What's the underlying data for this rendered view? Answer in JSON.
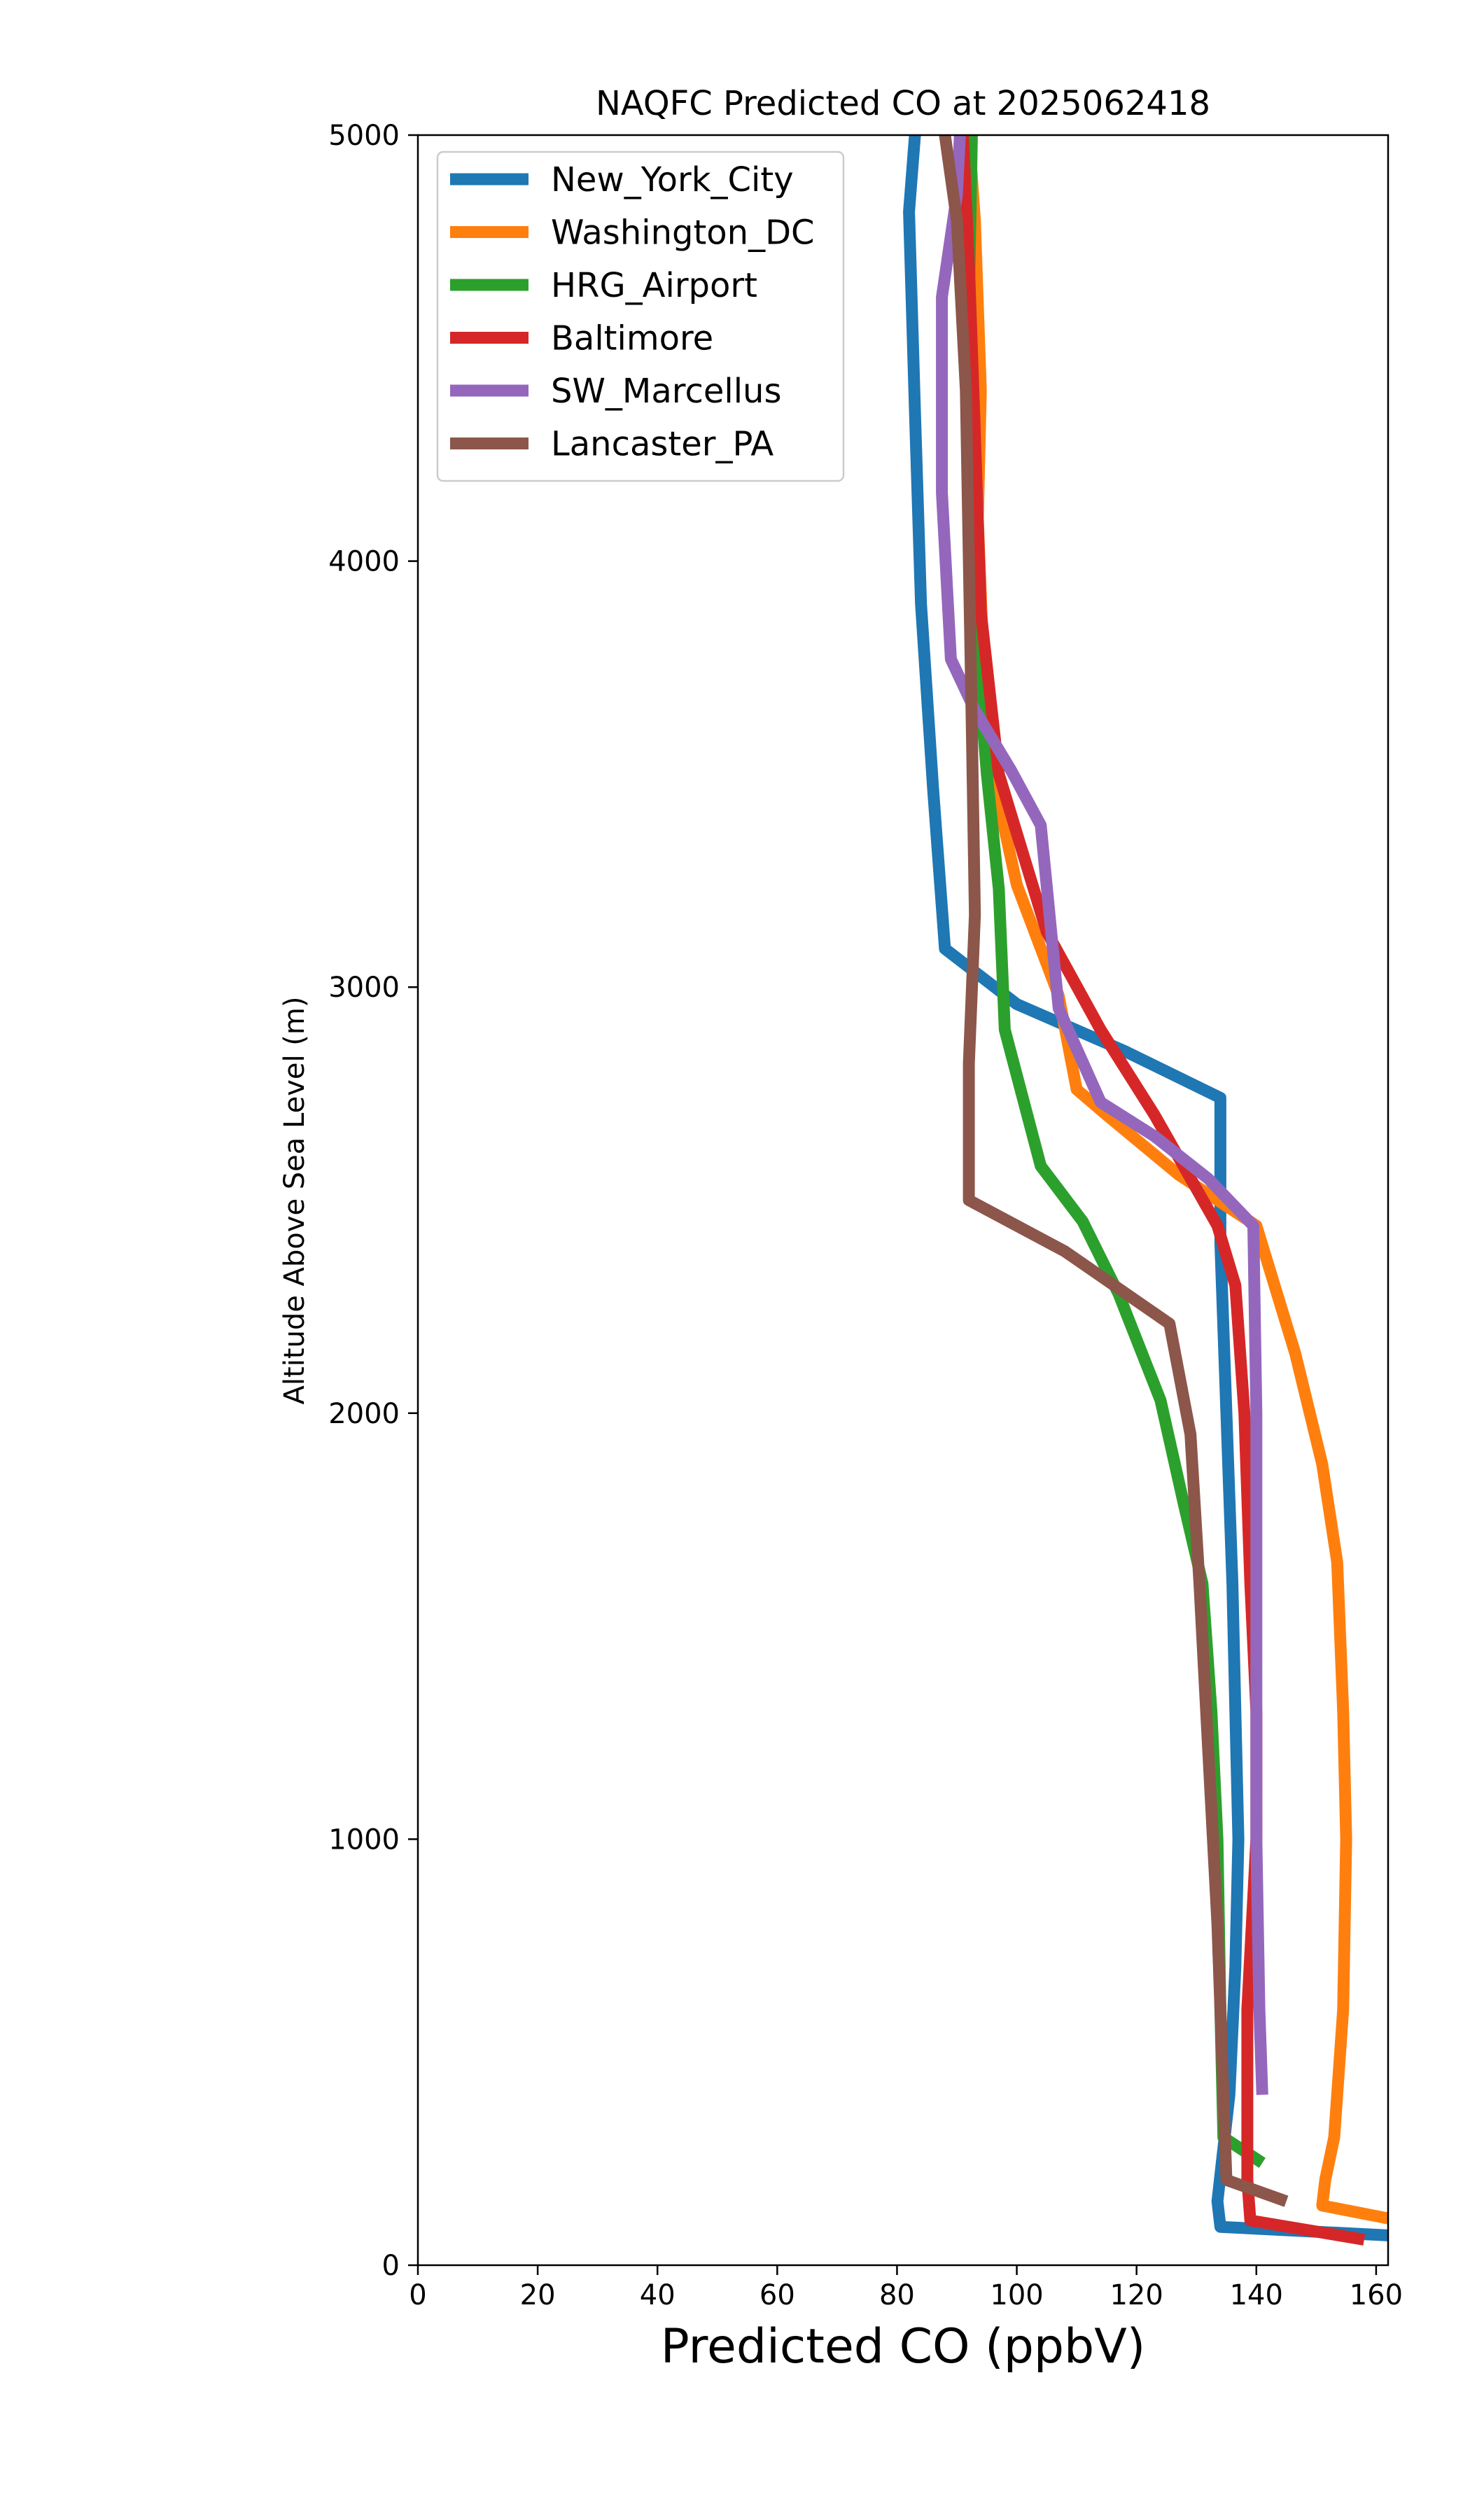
{
  "chart_data": {
    "type": "line",
    "title": "NAQFC Predicted CO at 2025062418",
    "xlabel": "Predicted CO (ppbV)",
    "ylabel": "Altitude Above Sea Level (m)",
    "xlim": [
      0,
      162
    ],
    "ylim": [
      0,
      5000
    ],
    "xticks": [
      0,
      20,
      40,
      60,
      80,
      100,
      120,
      140,
      160
    ],
    "yticks": [
      0,
      1000,
      2000,
      3000,
      4000,
      5000
    ],
    "grid": false,
    "legend_position": "top-left",
    "series": [
      {
        "name": "New_York_City",
        "color": "#1f77b4",
        "points": [
          [
            162,
            70
          ],
          [
            134,
            90
          ],
          [
            133.5,
            150
          ],
          [
            135.5,
            400
          ],
          [
            136.5,
            700
          ],
          [
            137,
            1000
          ],
          [
            136.5,
            1300
          ],
          [
            136,
            1600
          ],
          [
            135,
            2000
          ],
          [
            134,
            2400
          ],
          [
            134,
            2740
          ],
          [
            118,
            2850
          ],
          [
            100,
            2960
          ],
          [
            88,
            3090
          ],
          [
            86,
            3470
          ],
          [
            84,
            3900
          ],
          [
            83,
            4350
          ],
          [
            82,
            4820
          ],
          [
            83,
            5000
          ]
        ]
      },
      {
        "name": "Washington_DC",
        "color": "#ff7f0e",
        "points": [
          [
            162,
            110
          ],
          [
            151,
            140
          ],
          [
            151.5,
            200
          ],
          [
            153,
            300
          ],
          [
            154.5,
            600
          ],
          [
            155,
            1000
          ],
          [
            154.5,
            1300
          ],
          [
            153.5,
            1650
          ],
          [
            151,
            1880
          ],
          [
            146.5,
            2140
          ],
          [
            140,
            2440
          ],
          [
            127,
            2560
          ],
          [
            115,
            2700
          ],
          [
            110,
            2760
          ],
          [
            107,
            2980
          ],
          [
            100,
            3240
          ],
          [
            95,
            3560
          ],
          [
            93.5,
            4100
          ],
          [
            94,
            4400
          ],
          [
            93,
            4800
          ],
          [
            92,
            5000
          ]
        ]
      },
      {
        "name": "HRG_Airport",
        "color": "#2ca02c",
        "points": [
          [
            141,
            240
          ],
          [
            134.5,
            300
          ],
          [
            134,
            600
          ],
          [
            133.5,
            1000
          ],
          [
            132.5,
            1300
          ],
          [
            131,
            1600
          ],
          [
            128,
            1780
          ],
          [
            124,
            2030
          ],
          [
            117,
            2280
          ],
          [
            111,
            2450
          ],
          [
            104,
            2580
          ],
          [
            98,
            2900
          ],
          [
            97,
            3230
          ],
          [
            95,
            3500
          ],
          [
            93,
            3850
          ],
          [
            92,
            4200
          ],
          [
            92,
            4600
          ],
          [
            92.5,
            5000
          ]
        ]
      },
      {
        "name": "Baltimore",
        "color": "#d62728",
        "points": [
          [
            158,
            60
          ],
          [
            139,
            105
          ],
          [
            138.5,
            200
          ],
          [
            138.5,
            600
          ],
          [
            140,
            1000
          ],
          [
            140,
            1300
          ],
          [
            139,
            1600
          ],
          [
            138,
            2000
          ],
          [
            136.5,
            2300
          ],
          [
            133.5,
            2440
          ],
          [
            123,
            2700
          ],
          [
            114,
            2900
          ],
          [
            105,
            3130
          ],
          [
            97,
            3500
          ],
          [
            94,
            3880
          ],
          [
            93,
            4300
          ],
          [
            92,
            4700
          ],
          [
            91,
            5000
          ]
        ]
      },
      {
        "name": "SW_Marcellus",
        "color": "#9467bd",
        "points": [
          [
            141,
            400
          ],
          [
            140.5,
            600
          ],
          [
            140,
            1000
          ],
          [
            140,
            1400
          ],
          [
            140,
            2000
          ],
          [
            139.5,
            2440
          ],
          [
            132,
            2550
          ],
          [
            123,
            2650
          ],
          [
            114,
            2730
          ],
          [
            107,
            2950
          ],
          [
            104,
            3380
          ],
          [
            99,
            3510
          ],
          [
            93,
            3650
          ],
          [
            89,
            3770
          ],
          [
            87.5,
            4160
          ],
          [
            87.5,
            4620
          ],
          [
            90,
            4860
          ],
          [
            90.5,
            5000
          ]
        ]
      },
      {
        "name": "Lancaster_PA",
        "color": "#8c564b",
        "points": [
          [
            145,
            150
          ],
          [
            135,
            200
          ],
          [
            134.5,
            400
          ],
          [
            133.5,
            800
          ],
          [
            132,
            1200
          ],
          [
            130.5,
            1600
          ],
          [
            129,
            1950
          ],
          [
            125.5,
            2210
          ],
          [
            108,
            2380
          ],
          [
            92,
            2500
          ],
          [
            92,
            2820
          ],
          [
            93,
            3170
          ],
          [
            92.5,
            3600
          ],
          [
            92,
            4000
          ],
          [
            91.5,
            4400
          ],
          [
            90,
            4800
          ],
          [
            88,
            5000
          ]
        ]
      }
    ]
  }
}
